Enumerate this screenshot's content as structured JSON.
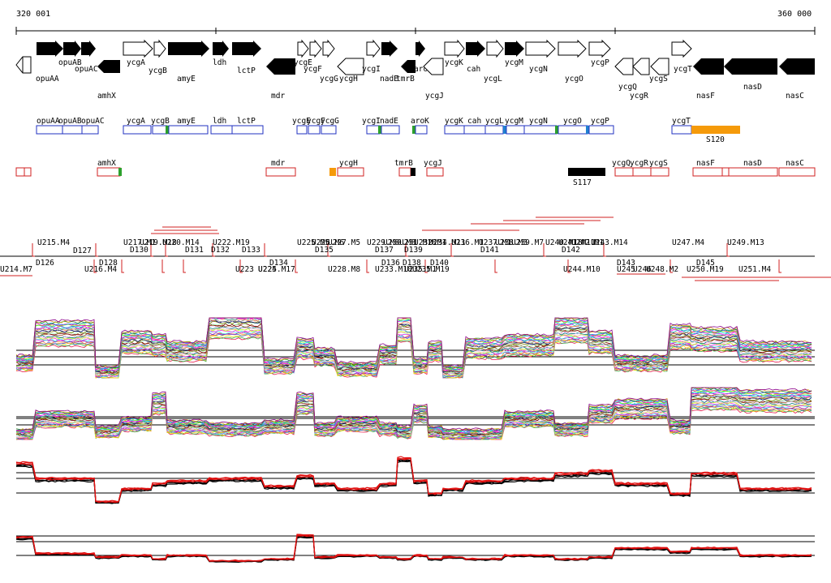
{
  "coords": {
    "start": "320 001",
    "end": "360 000"
  },
  "genes_top": [
    "opuAB",
    "opuAC",
    "ycgA",
    "ycgB",
    "amyE",
    "ldh",
    "lctP",
    "ycgE",
    "ycgF",
    "ycgG",
    "ycgH",
    "ycgI",
    "nadE",
    "tmrB",
    "aroK",
    "ycgJ",
    "ycgK",
    "cah",
    "ycgL",
    "ycgM",
    "ycgN",
    "ycgO",
    "ycgP",
    "ycgQ",
    "ycgR",
    "ycgS",
    "ycgT",
    "nasF",
    "nasD",
    "nasC",
    "opuAA",
    "amhX",
    "mdr"
  ],
  "operon_row1": [
    "opuAA",
    "opuAB",
    "opuAC",
    "ycgA",
    "ycgB",
    "amyE",
    "ldh",
    "lctP",
    "ycgE",
    "ycgF",
    "ycgG",
    "ycgI",
    "nadE",
    "aroK",
    "ycgK",
    "cah",
    "ycgL",
    "ycgM",
    "ycgN",
    "ycgO",
    "ycgP",
    "ycgT",
    "S120"
  ],
  "operon_row2": [
    "amhX",
    "mdr",
    "ycgH",
    "tmrB",
    "ycgJ",
    "S117",
    "ycgQ",
    "ycgR",
    "ycgS",
    "nasF",
    "nasD",
    "nasC"
  ],
  "segments_upper": [
    "U215.M4",
    "D127",
    "U217.M1",
    "U219.M18",
    "U220.M14",
    "D130",
    "D131",
    "U222.M19",
    "D132",
    "D133",
    "U225.M5",
    "U226.M6",
    "U227.M5",
    "D135",
    "U229.M8",
    "U230.M8",
    "U231.M18",
    "U232.M1",
    "D137",
    "D139",
    "U234.M11",
    "U236.M1",
    "U237.M1",
    "U238.M3",
    "D141",
    "U239.M7",
    "U240.M18",
    "U241.M11",
    "U242.M1",
    "D142",
    "U243.M14",
    "U247.M4",
    "U249.M13"
  ],
  "segments_lower": [
    "U214.M7",
    "D126",
    "D128",
    "U216.M4",
    "U223",
    "U224",
    "D134",
    "U225.M17",
    "U228.M8",
    "U233.M10",
    "U235.M1",
    "D138",
    "D136",
    "U235.M19",
    "D140",
    "U244.M10",
    "D143",
    "U245",
    "U246",
    "U248.M2",
    "D145",
    "U250.M19",
    "U251.M4"
  ]
}
